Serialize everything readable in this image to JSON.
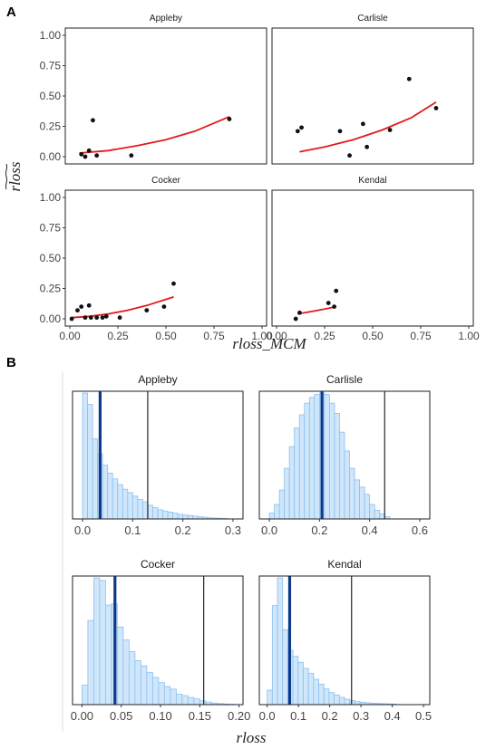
{
  "figure": {
    "panel_labels": [
      "A",
      "B"
    ]
  },
  "chart_data": [
    {
      "type": "scatter",
      "panel": "A",
      "xlabel": "rloss_MCM",
      "ylabel": "rloss",
      "xlim": [
        0,
        1
      ],
      "ylim": [
        0,
        1
      ],
      "x_ticks": [
        "0.00",
        "0.25",
        "0.50",
        "0.75",
        "1.00"
      ],
      "y_ticks": [
        "0.00",
        "0.25",
        "0.50",
        "0.75",
        "1.00"
      ],
      "grid": false,
      "fit_color": "#e31a1c",
      "point_color": "#111111",
      "facets": [
        {
          "name": "Appleby",
          "points": [
            [
              0.06,
              0.02
            ],
            [
              0.08,
              0.0
            ],
            [
              0.1,
              0.05
            ],
            [
              0.12,
              0.3
            ],
            [
              0.14,
              0.01
            ],
            [
              0.32,
              0.01
            ],
            [
              0.83,
              0.31
            ]
          ],
          "fit": [
            [
              0.05,
              0.03
            ],
            [
              0.2,
              0.05
            ],
            [
              0.35,
              0.09
            ],
            [
              0.5,
              0.14
            ],
            [
              0.65,
              0.21
            ],
            [
              0.83,
              0.33
            ]
          ]
        },
        {
          "name": "Carlisle",
          "points": [
            [
              0.11,
              0.21
            ],
            [
              0.13,
              0.24
            ],
            [
              0.33,
              0.21
            ],
            [
              0.38,
              0.01
            ],
            [
              0.45,
              0.27
            ],
            [
              0.47,
              0.08
            ],
            [
              0.59,
              0.22
            ],
            [
              0.69,
              0.64
            ],
            [
              0.83,
              0.4
            ]
          ],
          "fit": [
            [
              0.12,
              0.04
            ],
            [
              0.25,
              0.08
            ],
            [
              0.4,
              0.14
            ],
            [
              0.55,
              0.22
            ],
            [
              0.7,
              0.32
            ],
            [
              0.83,
              0.45
            ]
          ]
        },
        {
          "name": "Cocker",
          "points": [
            [
              0.01,
              0.0
            ],
            [
              0.04,
              0.07
            ],
            [
              0.06,
              0.1
            ],
            [
              0.08,
              0.01
            ],
            [
              0.1,
              0.11
            ],
            [
              0.11,
              0.01
            ],
            [
              0.14,
              0.01
            ],
            [
              0.17,
              0.01
            ],
            [
              0.19,
              0.02
            ],
            [
              0.26,
              0.01
            ],
            [
              0.4,
              0.07
            ],
            [
              0.49,
              0.1
            ],
            [
              0.54,
              0.29
            ]
          ],
          "fit": [
            [
              0.01,
              0.01
            ],
            [
              0.1,
              0.02
            ],
            [
              0.2,
              0.04
            ],
            [
              0.3,
              0.07
            ],
            [
              0.4,
              0.11
            ],
            [
              0.54,
              0.18
            ]
          ]
        },
        {
          "name": "Kendal",
          "points": [
            [
              0.1,
              0.0
            ],
            [
              0.12,
              0.05
            ],
            [
              0.27,
              0.13
            ],
            [
              0.3,
              0.1
            ],
            [
              0.31,
              0.23
            ]
          ],
          "fit": [
            [
              0.11,
              0.04
            ],
            [
              0.18,
              0.06
            ],
            [
              0.25,
              0.08
            ],
            [
              0.31,
              0.1
            ]
          ]
        }
      ]
    },
    {
      "type": "histogram",
      "panel": "B",
      "xlabel": "rloss",
      "bar_fill": "#cfe6fb",
      "bar_stroke": "#8cc0ef",
      "mean_line_color": "#0d3b8c",
      "ref_line_color": "#111111",
      "facets": [
        {
          "name": "Appleby",
          "x_ticks": [
            "0.0",
            "0.1",
            "0.2",
            "0.3"
          ],
          "xlim": [
            -0.02,
            0.32
          ],
          "bin_start": 0.0,
          "bin_width": 0.01,
          "counts": [
            1.1,
            1.0,
            0.7,
            0.57,
            0.47,
            0.4,
            0.35,
            0.3,
            0.26,
            0.23,
            0.2,
            0.17,
            0.15,
            0.12,
            0.1,
            0.08,
            0.07,
            0.06,
            0.05,
            0.04,
            0.035,
            0.03,
            0.025,
            0.02,
            0.015,
            0.01,
            0.008,
            0.006,
            0.004
          ],
          "mean_line": 0.035,
          "ref_line": 0.13
        },
        {
          "name": "Carlisle",
          "x_ticks": [
            "0.0",
            "0.2",
            "0.4",
            "0.6"
          ],
          "xlim": [
            -0.04,
            0.64
          ],
          "bin_start": 0.0,
          "bin_width": 0.02,
          "counts": [
            0.04,
            0.1,
            0.2,
            0.35,
            0.5,
            0.63,
            0.72,
            0.8,
            0.84,
            0.86,
            0.87,
            0.86,
            0.8,
            0.73,
            0.6,
            0.47,
            0.35,
            0.27,
            0.22,
            0.17,
            0.1,
            0.06,
            0.035,
            0.015
          ],
          "mean_line": 0.21,
          "ref_line": 0.46
        },
        {
          "name": "Cocker",
          "x_ticks": [
            "0.00",
            "0.05",
            "0.10",
            "0.15",
            "0.20"
          ],
          "xlim": [
            -0.012,
            0.205
          ],
          "bin_start": 0.0,
          "bin_width": 0.0075,
          "counts": [
            0.15,
            0.65,
            0.98,
            0.96,
            0.77,
            0.78,
            0.6,
            0.5,
            0.41,
            0.34,
            0.3,
            0.25,
            0.21,
            0.17,
            0.14,
            0.12,
            0.08,
            0.07,
            0.055,
            0.045,
            0.03,
            0.02,
            0.012,
            0.008,
            0.005,
            0.003
          ],
          "mean_line": 0.042,
          "ref_line": 0.155
        },
        {
          "name": "Kendal",
          "x_ticks": [
            "0.0",
            "0.1",
            "0.2",
            "0.3",
            "0.4",
            "0.5"
          ],
          "xlim": [
            -0.025,
            0.52
          ],
          "bin_start": 0.0,
          "bin_width": 0.0165,
          "counts": [
            0.12,
            0.82,
            1.05,
            0.62,
            0.45,
            0.4,
            0.35,
            0.3,
            0.26,
            0.21,
            0.17,
            0.13,
            0.1,
            0.08,
            0.06,
            0.045,
            0.035,
            0.025,
            0.02,
            0.015,
            0.012,
            0.01,
            0.008,
            0.006,
            0.005
          ],
          "mean_line": 0.072,
          "ref_line": 0.27
        }
      ]
    }
  ]
}
